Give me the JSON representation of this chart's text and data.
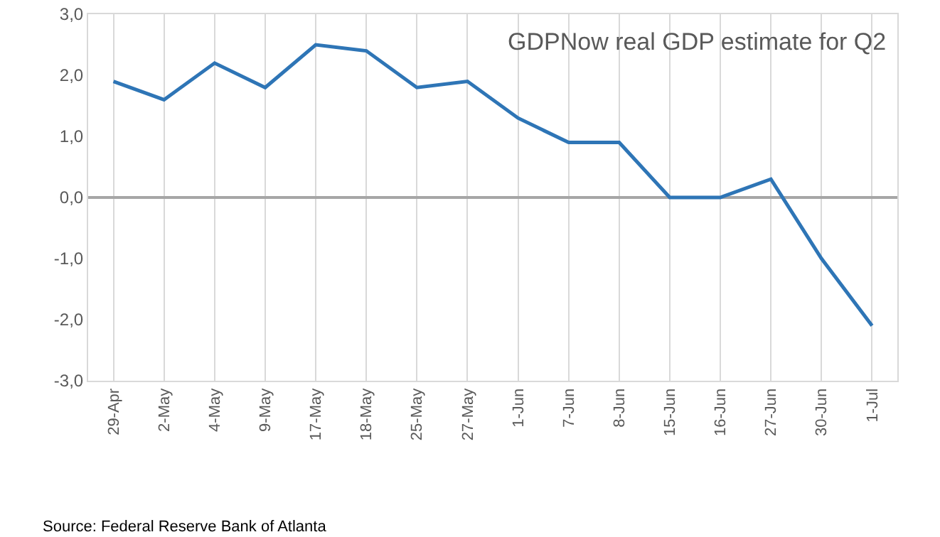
{
  "chart_data": {
    "type": "line",
    "title": "GDPNow real GDP estimate for Q2",
    "categories": [
      "29-Apr",
      "2-May",
      "4-May",
      "9-May",
      "17-May",
      "18-May",
      "25-May",
      "27-May",
      "1-Jun",
      "7-Jun",
      "8-Jun",
      "15-Jun",
      "16-Jun",
      "27-Jun",
      "30-Jun",
      "1-Jul"
    ],
    "series": [
      {
        "color": "#2e75b6",
        "values": [
          1.9,
          1.6,
          2.2,
          1.8,
          2.5,
          2.4,
          1.8,
          1.9,
          1.3,
          0.9,
          0.9,
          0.0,
          0.0,
          0.3,
          -1.0,
          -2.1
        ]
      }
    ],
    "ylim": [
      -3,
      3
    ],
    "yticks": [
      {
        "value": -3,
        "label": "-3,0"
      },
      {
        "value": -2,
        "label": "-2,0"
      },
      {
        "value": -1,
        "label": "-1,0"
      },
      {
        "value": 0,
        "label": "0,0"
      },
      {
        "value": 1,
        "label": "1,0"
      },
      {
        "value": 2,
        "label": "2,0"
      },
      {
        "value": 3,
        "label": "3,0"
      }
    ],
    "grid": "x",
    "marker": "none",
    "line_style": "solid",
    "annotations": [
      "Source: Federal Reserve Bank of Atlanta"
    ]
  }
}
